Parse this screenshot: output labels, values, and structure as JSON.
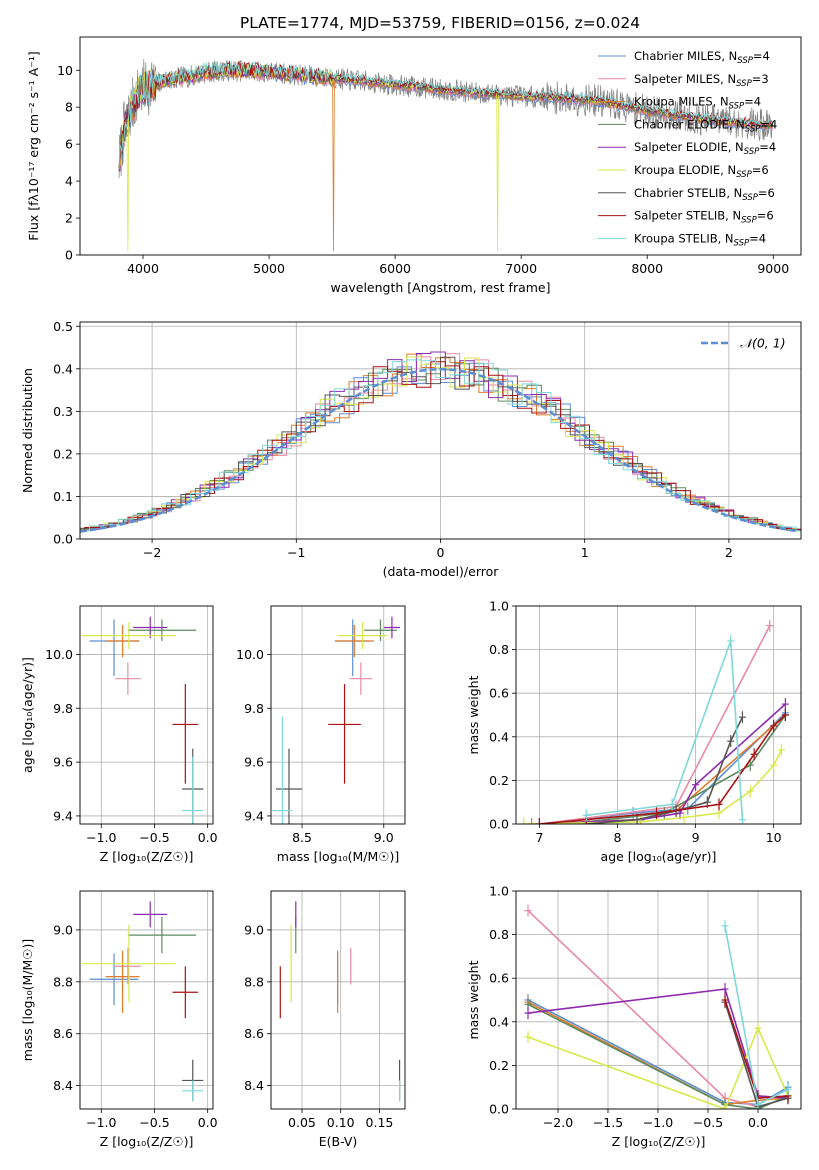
{
  "figure": {
    "title": "PLATE=1774, MJD=53759, FIBERID=0156, z=0.024"
  },
  "colors": {
    "Chabrier MILES": "#5b8fd4",
    "Salpeter MILES": "#e88aa6",
    "Kroupa MILES": "#e07b2a",
    "Chabrier ELODIE": "#5e8a5e",
    "Salpeter ELODIE": "#8e2ab0",
    "Kroupa ELODIE": "#d7e84a",
    "Chabrier STELIB": "#555555",
    "Salpeter STELIB": "#aa1111",
    "Kroupa STELIB": "#7fd8d8"
  },
  "chart_data": [
    {
      "id": "spectrum",
      "type": "line",
      "title": "PLATE=1774, MJD=53759, FIBERID=0156, z=0.024",
      "xlabel": "wavelength [Angstrom, rest frame]",
      "ylabel": "Flux [fλ10⁻¹⁷ erg cm⁻² s⁻¹ A⁻¹]",
      "xlim": [
        3500,
        9220
      ],
      "ylim": [
        0,
        11.8
      ],
      "xticks": [
        4000,
        5000,
        6000,
        7000,
        8000,
        9000
      ],
      "yticks": [
        0,
        2,
        4,
        6,
        8,
        10
      ],
      "grid": false,
      "legend": "top-right",
      "observed_data_color": "#808080",
      "continuum": {
        "wavelength": [
          3810,
          3850,
          3900,
          3950,
          4000,
          4100,
          4200,
          4300,
          4400,
          4500,
          4700,
          5000,
          5300,
          5600,
          6000,
          6300,
          6600,
          7000,
          7300,
          7600,
          8000,
          8500,
          9000
        ],
        "flux": [
          5.0,
          6.8,
          7.8,
          8.6,
          9.0,
          9.3,
          9.5,
          9.6,
          9.7,
          9.9,
          10.0,
          9.9,
          9.7,
          9.5,
          9.2,
          9.0,
          8.8,
          8.6,
          8.5,
          8.35,
          7.8,
          7.3,
          7.0
        ]
      },
      "series": [
        {
          "name": "Chabrier MILES",
          "nssp": "4"
        },
        {
          "name": "Salpeter MILES",
          "nssp": "3"
        },
        {
          "name": "Kroupa MILES",
          "nssp": "4"
        },
        {
          "name": "Chabrier ELODIE",
          "nssp": "4"
        },
        {
          "name": "Salpeter ELODIE",
          "nssp": "4"
        },
        {
          "name": "Kroupa ELODIE",
          "nssp": "6"
        },
        {
          "name": "Chabrier STELIB",
          "nssp": "6"
        },
        {
          "name": "Salpeter STELIB",
          "nssp": "6"
        },
        {
          "name": "Kroupa STELIB",
          "nssp": "4"
        }
      ],
      "legend_prefix": "N",
      "legend_sub": "SSP",
      "legend_suffix": "="
    },
    {
      "id": "residuals",
      "type": "line",
      "xlabel": "(data-model)/error",
      "ylabel": "Normed distribution",
      "xlim": [
        -2.5,
        2.5
      ],
      "ylim": [
        0,
        0.51
      ],
      "xticks": [
        -2,
        -1,
        0,
        1,
        2
      ],
      "yticks": [
        0.0,
        0.1,
        0.2,
        0.3,
        0.4,
        0.5
      ],
      "grid": true,
      "legend": "top-right",
      "gaussian_label": "𝒩(0, 1)",
      "gaussian_color": "#5b8fd4",
      "bin_width": 0.1
    },
    {
      "id": "age-vs-Z",
      "type": "scatter",
      "xlabel": "Z [log₁₀(Z/Z☉)]",
      "ylabel": "age  [log₁₀(age/yr)]",
      "xlim": [
        -1.2,
        0.05
      ],
      "ylim": [
        9.37,
        10.18
      ],
      "xticks": [
        -1.0,
        -0.5,
        0.0
      ],
      "yticks": [
        9.4,
        9.6,
        9.8,
        10.0
      ],
      "grid": true,
      "points": [
        {
          "series": "Chabrier MILES",
          "x": -0.88,
          "y": 10.05,
          "xerr": 0.23,
          "yerr": [
            0.13,
            0.08
          ]
        },
        {
          "series": "Salpeter MILES",
          "x": -0.75,
          "y": 9.91,
          "xerr": 0.12,
          "yerr": [
            0.06,
            0.06
          ]
        },
        {
          "series": "Kroupa MILES",
          "x": -0.8,
          "y": 10.05,
          "xerr": 0.16,
          "yerr": [
            0.06,
            0.06
          ]
        },
        {
          "series": "Chabrier ELODIE",
          "x": -0.43,
          "y": 10.09,
          "xerr": 0.32,
          "yerr": [
            0.04,
            0.04
          ]
        },
        {
          "series": "Salpeter ELODIE",
          "x": -0.54,
          "y": 10.1,
          "xerr": 0.16,
          "yerr": [
            0.04,
            0.04
          ]
        },
        {
          "series": "Kroupa ELODIE",
          "x": -0.74,
          "y": 10.07,
          "xerr": 0.44,
          "yerr": [
            0.05,
            0.05
          ]
        },
        {
          "series": "Chabrier STELIB",
          "x": -0.14,
          "y": 9.5,
          "xerr": 0.1,
          "yerr": [
            0.15,
            0.15
          ]
        },
        {
          "series": "Salpeter STELIB",
          "x": -0.21,
          "y": 9.74,
          "xerr": 0.12,
          "yerr": [
            0.22,
            0.15
          ]
        },
        {
          "series": "Kroupa STELIB",
          "x": -0.14,
          "y": 9.42,
          "xerr": 0.1,
          "yerr": [
            0.05,
            0.2
          ]
        }
      ]
    },
    {
      "id": "age-vs-mass",
      "type": "scatter",
      "xlabel": "mass [log₁₀(M/M☉)]",
      "ylabel": "",
      "xlim": [
        8.31,
        9.13
      ],
      "ylim": [
        9.37,
        10.18
      ],
      "xticks": [
        8.5,
        9.0
      ],
      "yticks": [
        9.4,
        9.6,
        9.8,
        10.0
      ],
      "grid": true,
      "points": [
        {
          "series": "Chabrier MILES",
          "x": 8.81,
          "y": 10.05,
          "xerr": 0.1,
          "yerr": [
            0.13,
            0.08
          ]
        },
        {
          "series": "Salpeter MILES",
          "x": 8.86,
          "y": 9.91,
          "xerr": 0.07,
          "yerr": [
            0.06,
            0.06
          ]
        },
        {
          "series": "Kroupa MILES",
          "x": 8.82,
          "y": 10.05,
          "xerr": 0.12,
          "yerr": [
            0.06,
            0.06
          ]
        },
        {
          "series": "Chabrier ELODIE",
          "x": 8.98,
          "y": 10.09,
          "xerr": 0.1,
          "yerr": [
            0.04,
            0.04
          ]
        },
        {
          "series": "Salpeter ELODIE",
          "x": 9.05,
          "y": 10.1,
          "xerr": 0.05,
          "yerr": [
            0.04,
            0.04
          ]
        },
        {
          "series": "Kroupa ELODIE",
          "x": 8.87,
          "y": 10.07,
          "xerr": 0.15,
          "yerr": [
            0.05,
            0.05
          ]
        },
        {
          "series": "Chabrier STELIB",
          "x": 8.42,
          "y": 9.5,
          "xerr": 0.08,
          "yerr": [
            0.15,
            0.15
          ]
        },
        {
          "series": "Salpeter STELIB",
          "x": 8.76,
          "y": 9.74,
          "xerr": 0.1,
          "yerr": [
            0.22,
            0.15
          ]
        },
        {
          "series": "Kroupa STELIB",
          "x": 8.38,
          "y": 9.42,
          "xerr": 0.06,
          "yerr": [
            0.05,
            0.35
          ]
        }
      ]
    },
    {
      "id": "weight-vs-age",
      "type": "line",
      "xlabel": "age  [log₁₀(age/yr)]",
      "ylabel": "mass weight",
      "xlim": [
        6.7,
        10.35
      ],
      "ylim": [
        0,
        1.0
      ],
      "xticks": [
        7,
        8,
        9,
        10
      ],
      "yticks": [
        0.0,
        0.2,
        0.4,
        0.6,
        0.8,
        1.0
      ],
      "grid": true,
      "series": [
        {
          "name": "Chabrier MILES",
          "x": [
            7.0,
            8.2,
            8.9,
            10.15
          ],
          "y": [
            0.0,
            0.05,
            0.07,
            0.51
          ]
        },
        {
          "name": "Salpeter MILES",
          "x": [
            7.0,
            8.75,
            9.95
          ],
          "y": [
            0.0,
            0.08,
            0.91
          ]
        },
        {
          "name": "Kroupa MILES",
          "x": [
            6.9,
            8.3,
            8.75,
            10.15
          ],
          "y": [
            0.0,
            0.02,
            0.06,
            0.5
          ]
        },
        {
          "name": "Chabrier ELODIE",
          "x": [
            7.6,
            8.6,
            9.7,
            10.15
          ],
          "y": [
            0.01,
            0.05,
            0.27,
            0.5
          ]
        },
        {
          "name": "Salpeter ELODIE",
          "x": [
            7.0,
            8.3,
            8.8,
            9.0,
            10.15
          ],
          "y": [
            0.0,
            0.02,
            0.05,
            0.18,
            0.55
          ]
        },
        {
          "name": "Kroupa ELODIE",
          "x": [
            6.8,
            8.3,
            8.85,
            9.3,
            9.7,
            10.0,
            10.1
          ],
          "y": [
            0.0,
            0.01,
            0.03,
            0.05,
            0.15,
            0.27,
            0.34
          ]
        },
        {
          "name": "Chabrier STELIB",
          "x": [
            7.6,
            8.25,
            8.75,
            9.15,
            9.45,
            9.6
          ],
          "y": [
            0.0,
            0.02,
            0.06,
            0.1,
            0.38,
            0.49
          ]
        },
        {
          "name": "Salpeter STELIB",
          "x": [
            7.0,
            7.6,
            8.5,
            9.3,
            9.75,
            10.0,
            10.15
          ],
          "y": [
            0.0,
            0.02,
            0.05,
            0.09,
            0.32,
            0.45,
            0.5
          ]
        },
        {
          "name": "Kroupa STELIB",
          "x": [
            7.6,
            8.7,
            9.45,
            9.6
          ],
          "y": [
            0.04,
            0.09,
            0.84,
            0.02
          ]
        }
      ]
    },
    {
      "id": "mass-vs-Z",
      "type": "scatter",
      "xlabel": "Z [log₁₀(Z/Z☉)]",
      "ylabel": "mass [log₁₀(M/M☉)]",
      "xlim": [
        -1.2,
        0.05
      ],
      "ylim": [
        8.31,
        9.15
      ],
      "xticks": [
        -1.0,
        -0.5,
        0.0
      ],
      "yticks": [
        8.4,
        8.6,
        8.8,
        9.0
      ],
      "grid": true,
      "points": [
        {
          "series": "Chabrier MILES",
          "x": -0.88,
          "y": 8.81,
          "xerr": 0.23,
          "yerr": [
            0.1,
            0.1
          ]
        },
        {
          "series": "Salpeter MILES",
          "x": -0.75,
          "y": 8.86,
          "xerr": 0.12,
          "yerr": [
            0.07,
            0.07
          ]
        },
        {
          "series": "Kroupa MILES",
          "x": -0.8,
          "y": 8.82,
          "xerr": 0.16,
          "yerr": [
            0.14,
            0.1
          ]
        },
        {
          "series": "Chabrier ELODIE",
          "x": -0.43,
          "y": 8.98,
          "xerr": 0.32,
          "yerr": [
            0.07,
            0.07
          ]
        },
        {
          "series": "Salpeter ELODIE",
          "x": -0.54,
          "y": 9.06,
          "xerr": 0.16,
          "yerr": [
            0.05,
            0.05
          ]
        },
        {
          "series": "Kroupa ELODIE",
          "x": -0.74,
          "y": 8.87,
          "xerr": 0.44,
          "yerr": [
            0.15,
            0.15
          ]
        },
        {
          "series": "Chabrier STELIB",
          "x": -0.14,
          "y": 8.42,
          "xerr": 0.1,
          "yerr": [
            0.08,
            0.08
          ]
        },
        {
          "series": "Salpeter STELIB",
          "x": -0.21,
          "y": 8.76,
          "xerr": 0.12,
          "yerr": [
            0.1,
            0.1
          ]
        },
        {
          "series": "Kroupa STELIB",
          "x": -0.14,
          "y": 8.38,
          "xerr": 0.1,
          "yerr": [
            0.04,
            0.04
          ]
        }
      ]
    },
    {
      "id": "mass-vs-EBV",
      "type": "scatter",
      "xlabel": "E(B-V)",
      "ylabel": "",
      "xlim": [
        0.01,
        0.183
      ],
      "ylim": [
        8.31,
        9.15
      ],
      "xticks": [
        0.05,
        0.1,
        0.15
      ],
      "xticklabels": [
        "0.05",
        "0.10",
        "0.15"
      ],
      "yticks": [
        8.4,
        8.6,
        8.8,
        9.0
      ],
      "grid": true,
      "points": [
        {
          "series": "Chabrier MILES",
          "x": 0.096,
          "y": 8.81,
          "xerr": 0,
          "yerr": [
            0.1,
            0.1
          ]
        },
        {
          "series": "Salpeter MILES",
          "x": 0.113,
          "y": 8.86,
          "xerr": 0,
          "yerr": [
            0.07,
            0.07
          ]
        },
        {
          "series": "Kroupa MILES",
          "x": 0.096,
          "y": 8.82,
          "xerr": 0,
          "yerr": [
            0.14,
            0.1
          ]
        },
        {
          "series": "Chabrier ELODIE",
          "x": 0.042,
          "y": 8.98,
          "xerr": 0,
          "yerr": [
            0.07,
            0.07
          ]
        },
        {
          "series": "Salpeter ELODIE",
          "x": 0.042,
          "y": 9.06,
          "xerr": 0,
          "yerr": [
            0.05,
            0.05
          ]
        },
        {
          "series": "Kroupa ELODIE",
          "x": 0.036,
          "y": 8.87,
          "xerr": 0,
          "yerr": [
            0.15,
            0.15
          ]
        },
        {
          "series": "Chabrier STELIB",
          "x": 0.176,
          "y": 8.42,
          "xerr": 0,
          "yerr": [
            0.08,
            0.08
          ]
        },
        {
          "series": "Salpeter STELIB",
          "x": 0.022,
          "y": 8.76,
          "xerr": 0,
          "yerr": [
            0.1,
            0.1
          ]
        },
        {
          "series": "Kroupa STELIB",
          "x": 0.176,
          "y": 8.38,
          "xerr": 0,
          "yerr": [
            0.04,
            0.04
          ]
        }
      ]
    },
    {
      "id": "weight-vs-Z",
      "type": "line",
      "xlabel": "Z [log₁₀(Z/Z☉)]",
      "ylabel": "mass weight",
      "xlim": [
        -2.42,
        0.43
      ],
      "ylim": [
        0,
        1.0
      ],
      "xticks": [
        -2.0,
        -1.5,
        -1.0,
        -0.5,
        0.0
      ],
      "yticks": [
        0.0,
        0.2,
        0.4,
        0.6,
        0.8,
        1.0
      ],
      "grid": true,
      "series": [
        {
          "name": "Chabrier MILES",
          "x": [
            -2.3,
            -0.33,
            0.0,
            0.3
          ],
          "y": [
            0.5,
            0.03,
            0.02,
            0.1
          ]
        },
        {
          "name": "Salpeter MILES",
          "x": [
            -2.3,
            -0.33,
            0.0
          ],
          "y": [
            0.91,
            0.05,
            0.01
          ]
        },
        {
          "name": "Kroupa MILES",
          "x": [
            -2.3,
            -0.33,
            0.0,
            0.3
          ],
          "y": [
            0.49,
            0.02,
            0.04,
            0.05
          ]
        },
        {
          "name": "Chabrier ELODIE",
          "x": [
            -2.3,
            -0.33,
            0.0,
            0.3
          ],
          "y": [
            0.48,
            0.02,
            0.0,
            0.06
          ]
        },
        {
          "name": "Salpeter ELODIE",
          "x": [
            -2.3,
            -0.33,
            0.0,
            0.3
          ],
          "y": [
            0.44,
            0.55,
            0.06,
            0.05
          ]
        },
        {
          "name": "Kroupa ELODIE",
          "x": [
            -2.3,
            -0.33,
            0.0,
            0.3
          ],
          "y": [
            0.33,
            0.0,
            0.37,
            0.06
          ]
        },
        {
          "name": "Chabrier STELIB",
          "x": [
            -0.33,
            0.0,
            0.3
          ],
          "y": [
            0.49,
            0.01,
            0.05
          ]
        },
        {
          "name": "Salpeter STELIB",
          "x": [
            -0.33,
            0.0,
            0.3
          ],
          "y": [
            0.5,
            0.05,
            0.06
          ]
        },
        {
          "name": "Kroupa STELIB",
          "x": [
            -0.33,
            0.0,
            0.3
          ],
          "y": [
            0.84,
            0.02,
            0.09
          ]
        }
      ]
    }
  ]
}
